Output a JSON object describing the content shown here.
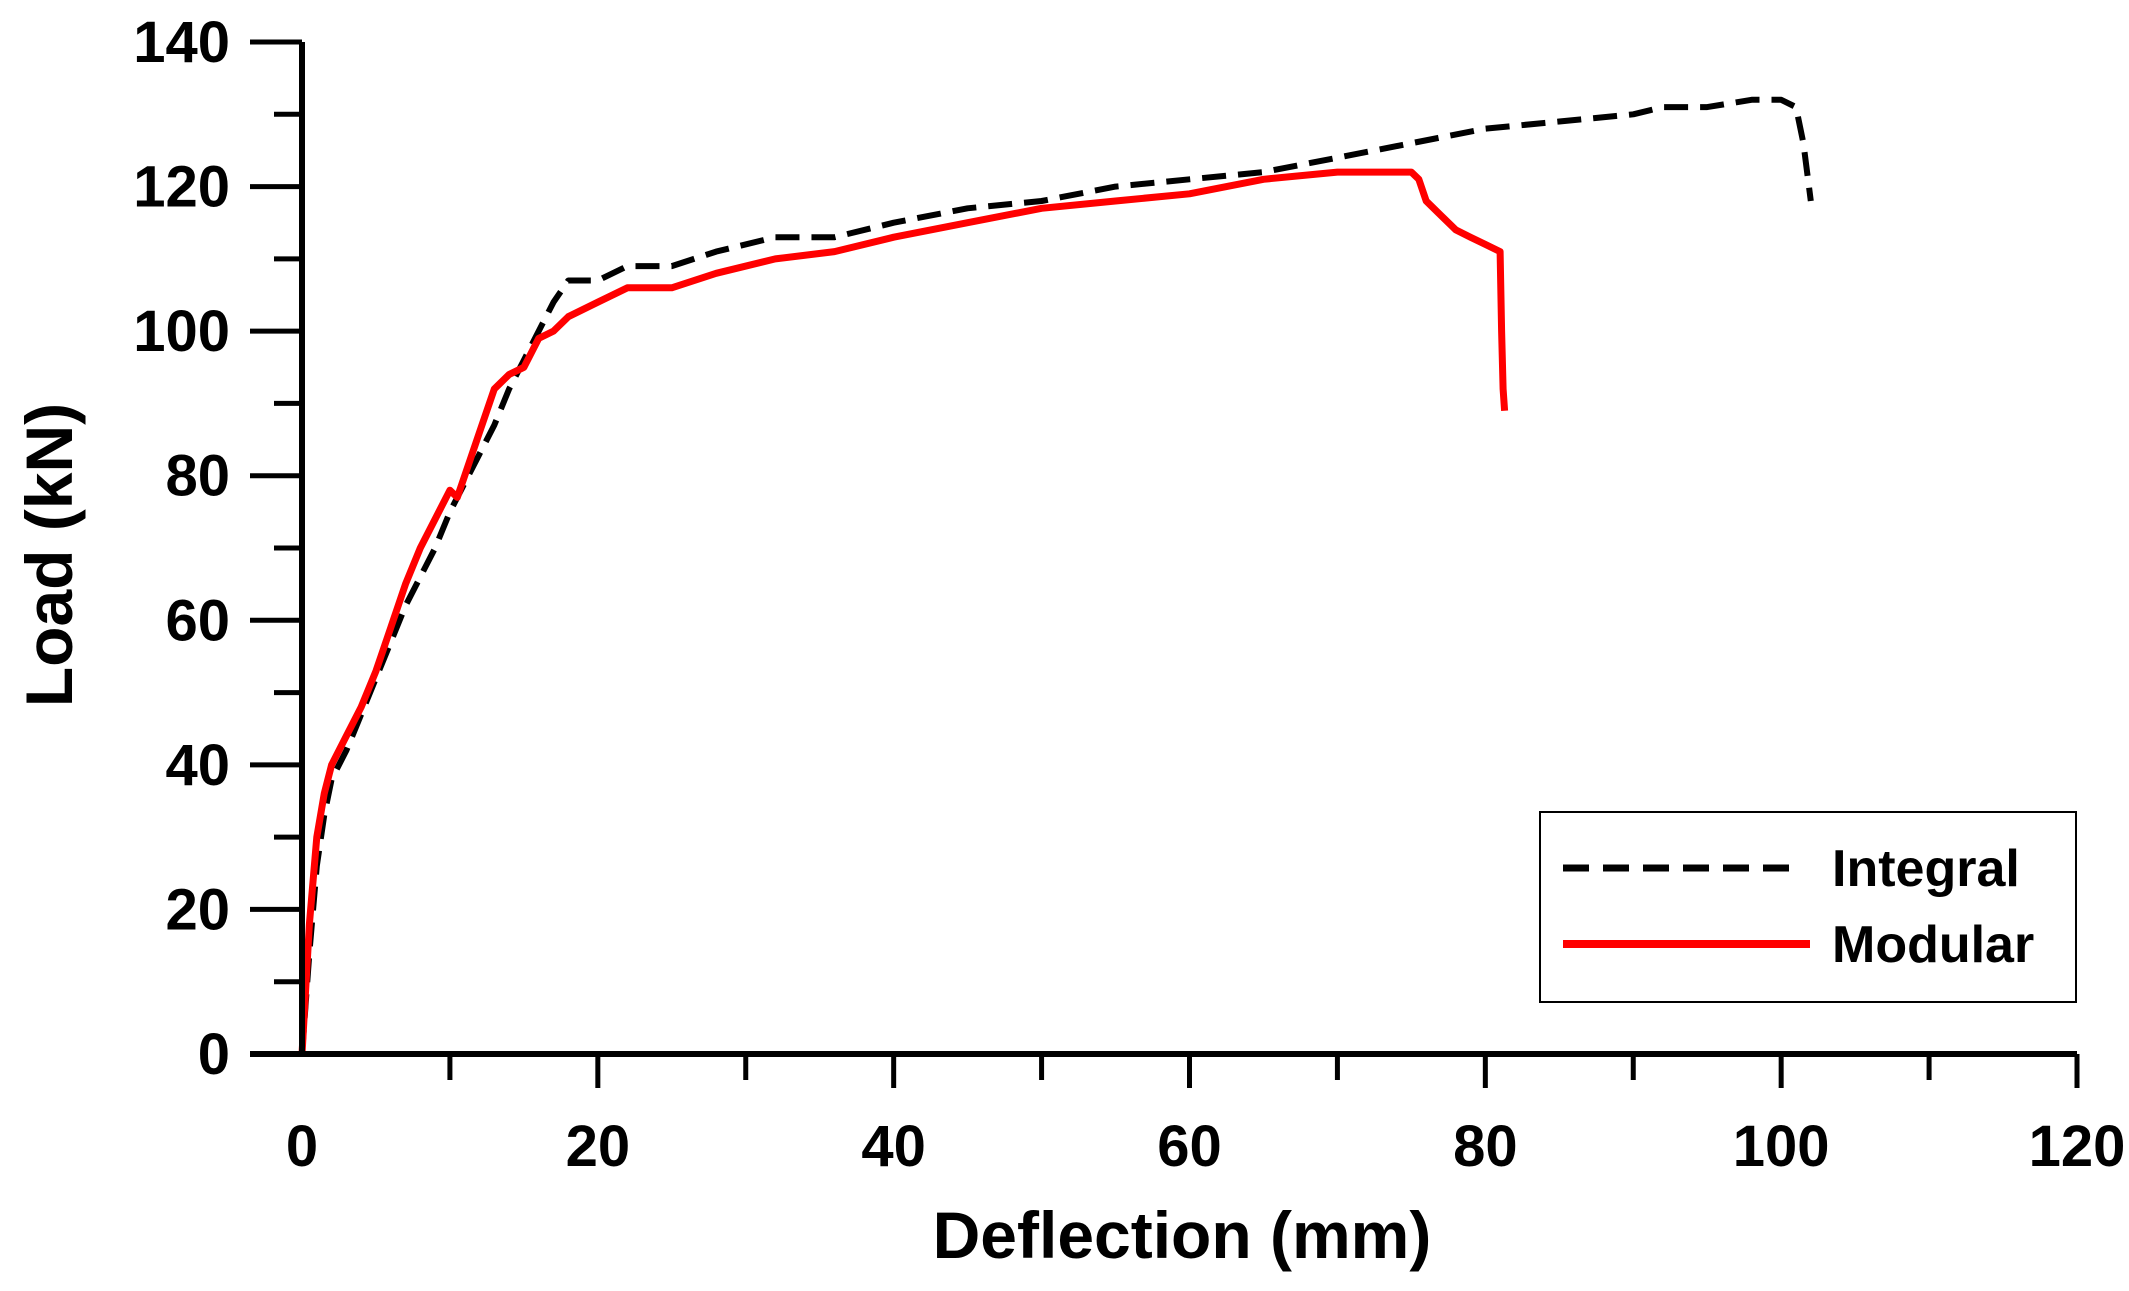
{
  "chart_data": {
    "type": "line",
    "title": "",
    "xlabel": "Deflection (mm)",
    "ylabel": "Load (kN)",
    "xlim": [
      0,
      120
    ],
    "ylim": [
      0,
      140
    ],
    "xticks": [
      0,
      20,
      40,
      60,
      80,
      100,
      120
    ],
    "yticks": [
      0,
      20,
      40,
      60,
      80,
      100,
      120,
      140
    ],
    "xtick_labels": [
      "0",
      "20",
      "40",
      "60",
      "80",
      "100",
      "120"
    ],
    "ytick_labels": [
      "0",
      "20",
      "40",
      "60",
      "80",
      "100",
      "120",
      "140"
    ],
    "grid": false,
    "legend_position": "bottom-right",
    "series": [
      {
        "name": "Integral",
        "color": "#000000",
        "style": "dashed",
        "x": [
          0,
          0.5,
          1,
          1.5,
          2,
          3,
          4,
          5,
          6,
          7,
          8,
          9,
          10,
          11,
          12,
          13,
          14,
          15,
          16,
          17,
          18,
          19,
          20,
          22,
          25,
          28,
          32,
          36,
          40,
          45,
          50,
          55,
          60,
          65,
          70,
          75,
          80,
          85,
          90,
          92,
          95,
          98,
          100,
          101,
          101.5,
          102
        ],
        "y": [
          0,
          14,
          26,
          33,
          38,
          42,
          47,
          52,
          57,
          62,
          66,
          70,
          75,
          79,
          83,
          87,
          92,
          96,
          100,
          104,
          107,
          107,
          107,
          109,
          109,
          111,
          113,
          113,
          115,
          117,
          118,
          120,
          121,
          122,
          124,
          126,
          128,
          129,
          130,
          131,
          131,
          132,
          132,
          131,
          126,
          118
        ]
      },
      {
        "name": "Modular",
        "color": "#ff0000",
        "style": "solid",
        "x": [
          0,
          0.5,
          1,
          1.5,
          2,
          3,
          4,
          5,
          6,
          7,
          8,
          9,
          10,
          10.5,
          11,
          12,
          13,
          14,
          15,
          16,
          17,
          18,
          20,
          22,
          25,
          28,
          32,
          36,
          40,
          45,
          50,
          55,
          60,
          65,
          70,
          72,
          74,
          75,
          75.5,
          76,
          77,
          78,
          79,
          80,
          81,
          81.1,
          81.2,
          81.3
        ],
        "y": [
          0,
          18,
          30,
          36,
          40,
          44,
          48,
          53,
          59,
          65,
          70,
          74,
          78,
          77,
          80,
          86,
          92,
          94,
          95,
          99,
          100,
          102,
          104,
          106,
          106,
          108,
          110,
          111,
          113,
          115,
          117,
          118,
          119,
          121,
          122,
          122,
          122,
          122,
          121,
          118,
          116,
          114,
          113,
          112,
          111,
          100,
          92,
          89
        ]
      }
    ]
  }
}
